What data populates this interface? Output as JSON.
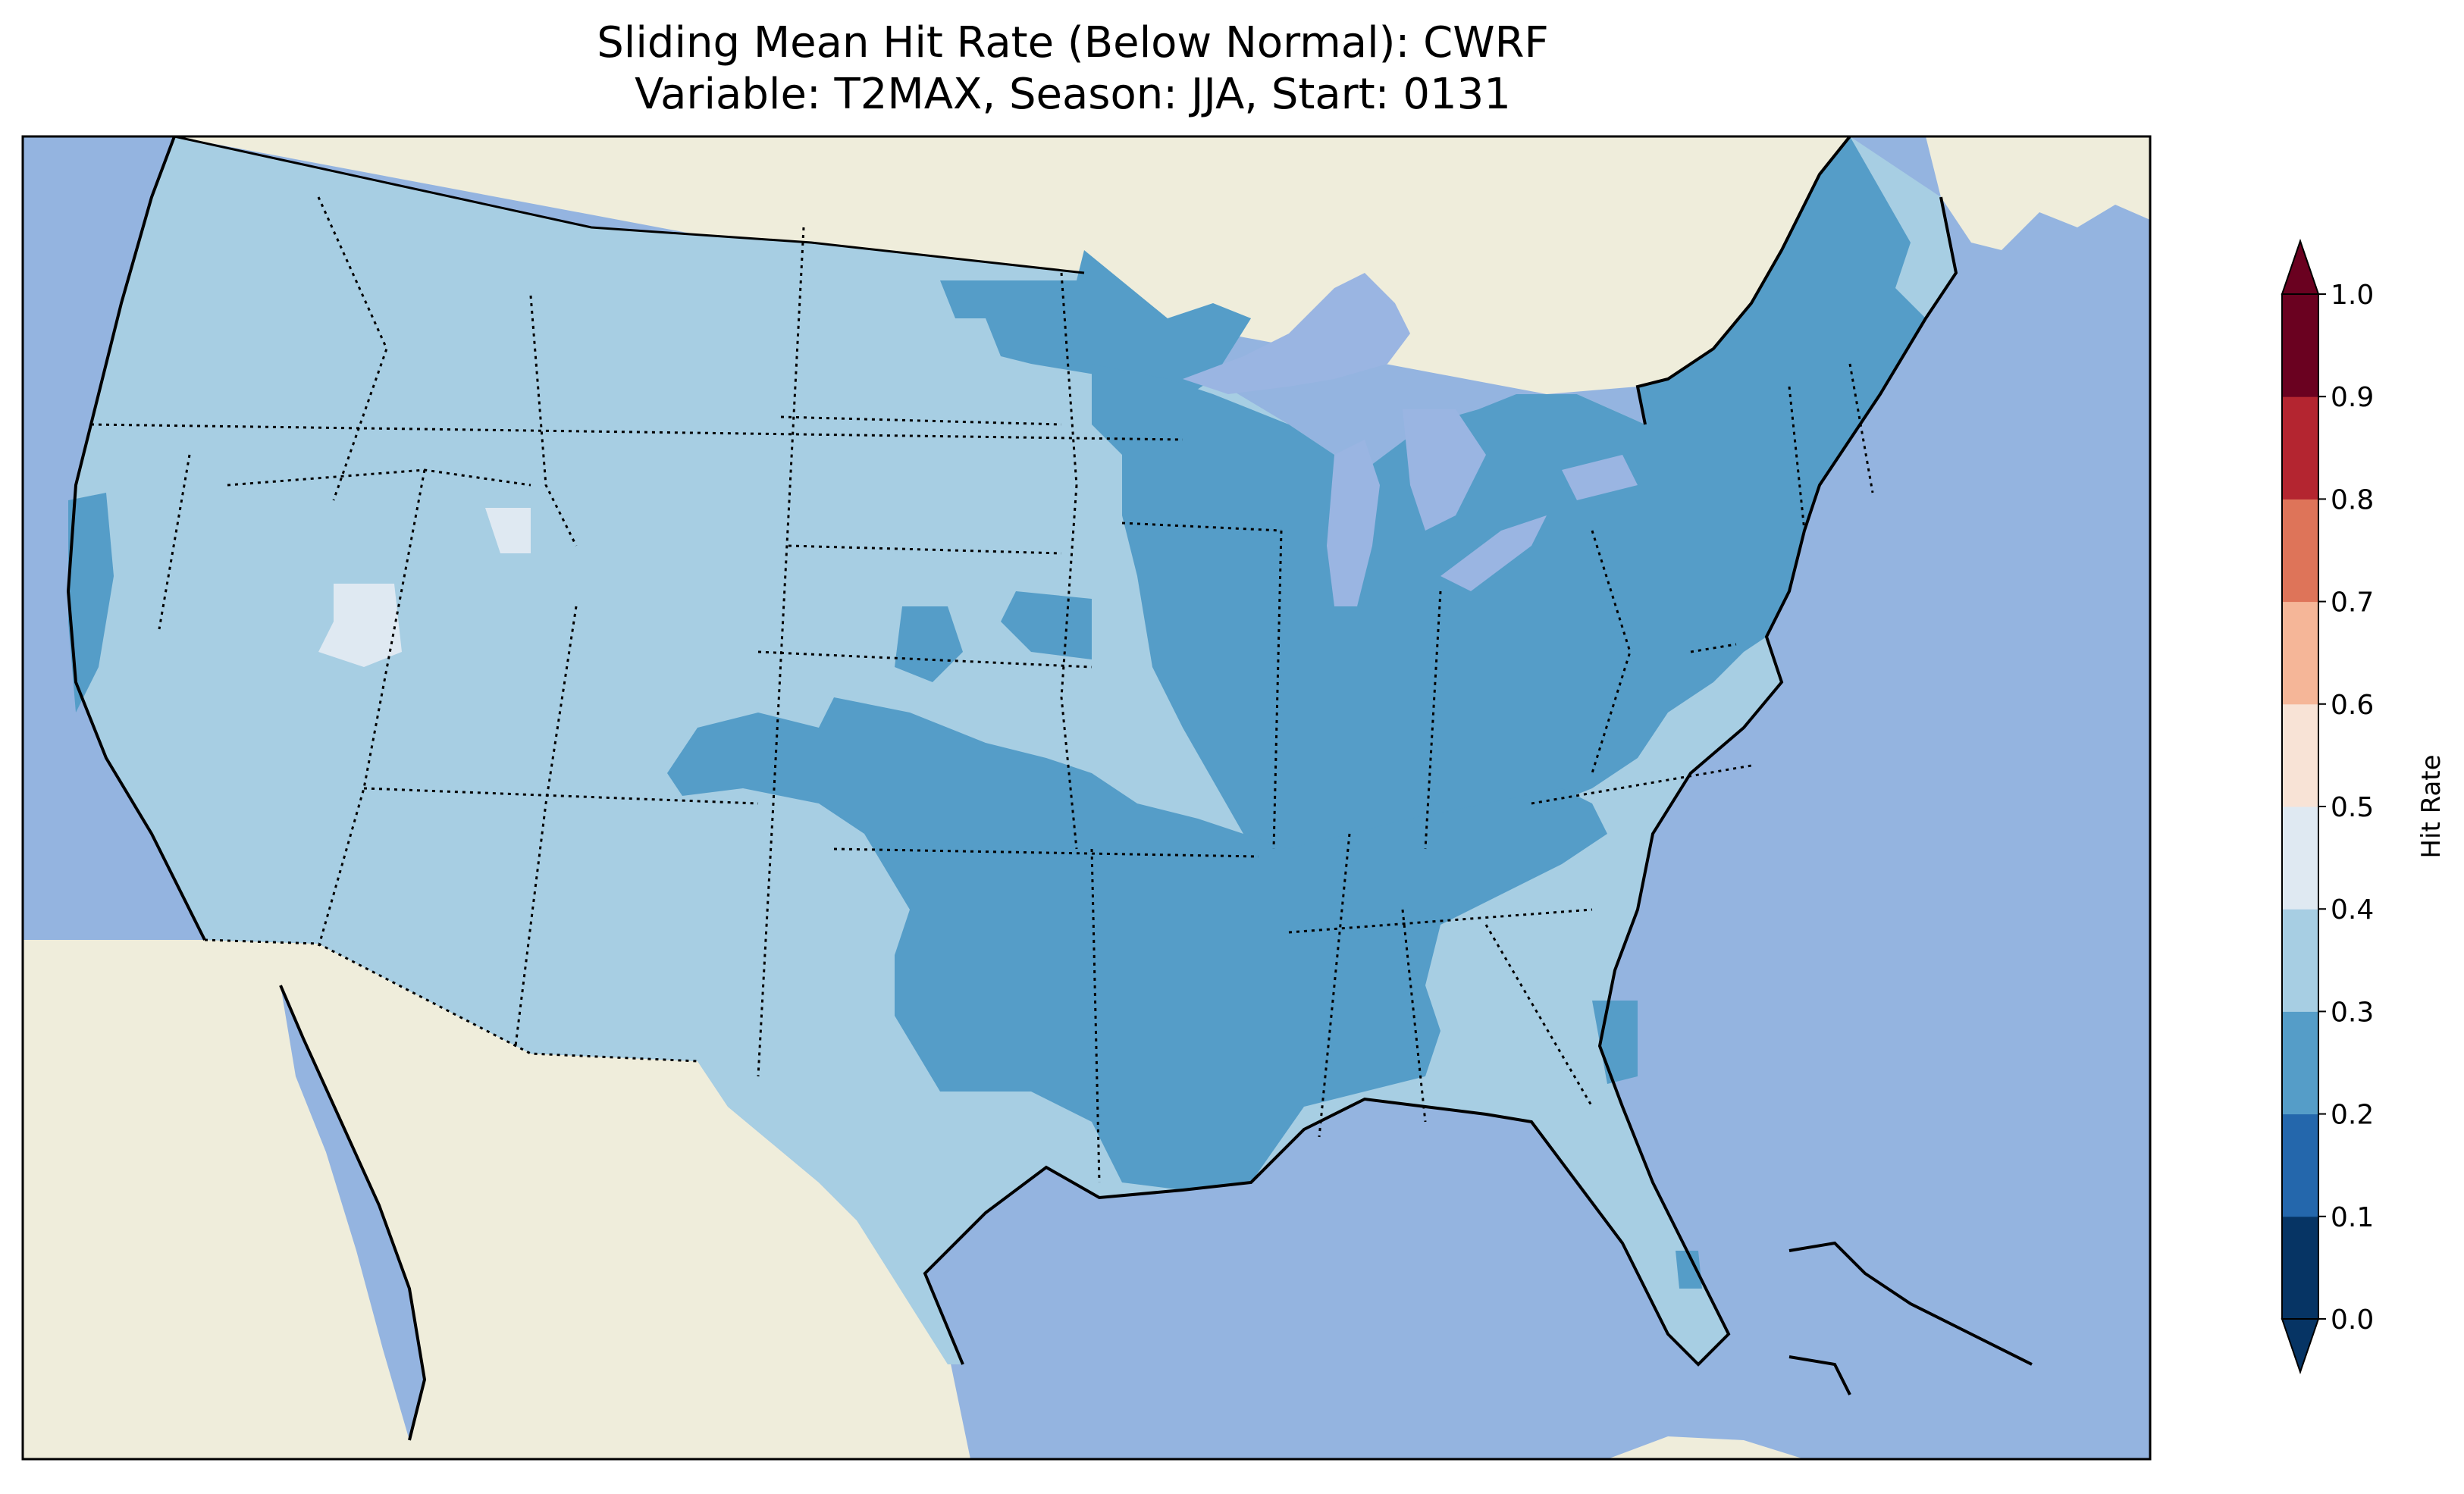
{
  "title": {
    "line1": "Sliding Mean Hit Rate (Below Normal): CWRF",
    "line2": "Variable: T2MAX, Season: JJA, Start: 0131"
  },
  "colors": {
    "ocean": "#94b4e0",
    "land": "#efeddb",
    "lake": "#9ab5e2",
    "class_0_2_0_3": "#559dc8",
    "class_0_3_0_4": "#a7cee3",
    "class_0_4_0_5": "#dfe9f2"
  },
  "colorbar": {
    "label": "Hit Rate",
    "ticks": [
      "0.0",
      "0.1",
      "0.2",
      "0.3",
      "0.4",
      "0.5",
      "0.6",
      "0.7",
      "0.8",
      "0.9",
      "1.0"
    ],
    "bins": [
      {
        "range": "0.0-0.1",
        "color": "#063464"
      },
      {
        "range": "0.1-0.2",
        "color": "#2467ac"
      },
      {
        "range": "0.2-0.3",
        "color": "#559dc8"
      },
      {
        "range": "0.3-0.4",
        "color": "#a7cee3"
      },
      {
        "range": "0.4-0.5",
        "color": "#dfe9f2"
      },
      {
        "range": "0.5-0.6",
        "color": "#f8e3d6"
      },
      {
        "range": "0.6-0.7",
        "color": "#f5b698"
      },
      {
        "range": "0.7-0.8",
        "color": "#de7459"
      },
      {
        "range": "0.8-0.9",
        "color": "#b42530"
      },
      {
        "range": "0.9-1.0",
        "color": "#6a0120"
      }
    ],
    "extend": "both"
  },
  "map": {
    "region": "Contiguous United States",
    "features": [
      "coastlines",
      "state borders (dotted)",
      "country borders (dotted)",
      "lakes"
    ],
    "regions": [
      {
        "name": "Northern Plains",
        "class": "0.2-0.3"
      },
      {
        "name": "Upper Midwest and Great Lakes",
        "class": "0.2-0.3"
      },
      {
        "name": "Northeast and Mid-Atlantic",
        "class": "0.2-0.3"
      },
      {
        "name": "Southern Plains and Lower Mississippi Valley",
        "class": "0.2-0.3"
      },
      {
        "name": "Ohio and Tennessee Valleys",
        "class": "0.2-0.3"
      },
      {
        "name": "Central California coast",
        "class": "0.2-0.3"
      },
      {
        "name": "Great Basin (Nevada)",
        "class": "0.4-0.5"
      },
      {
        "name": "Western United States",
        "class": "0.3-0.4"
      }
    ]
  }
}
